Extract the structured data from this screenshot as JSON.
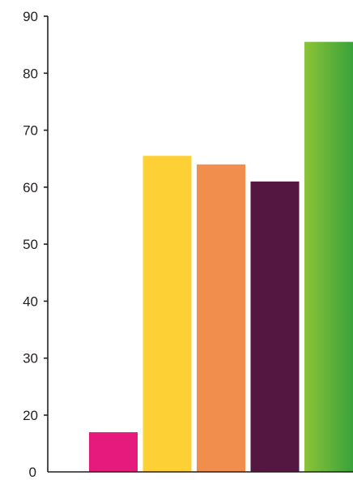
{
  "chart_data": {
    "type": "bar",
    "title": "",
    "xlabel": "",
    "ylabel": "",
    "ylim": [
      0,
      90
    ],
    "y_axis_zero_position_note": "",
    "y_ticks": [
      0,
      20,
      30,
      40,
      50,
      60,
      70,
      80,
      90
    ],
    "y_tick_labels": [
      "0",
      "20",
      "30",
      "40",
      "50",
      "60",
      "70",
      "80",
      "90"
    ],
    "grid": false,
    "legend": "none",
    "bars": [
      {
        "value": 17,
        "color": "#e6197c"
      },
      {
        "value": 65.5,
        "color": "#fdd035"
      },
      {
        "value": 64,
        "color": "#f28e4d"
      },
      {
        "value": 61,
        "color": "#541742"
      },
      {
        "value": 85.5,
        "color_start": "#8cc338",
        "color_end": "#3aa23a",
        "gradient": true
      }
    ]
  }
}
